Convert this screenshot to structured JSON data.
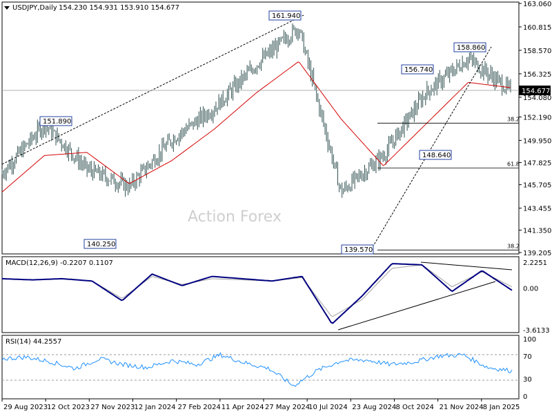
{
  "header": {
    "symbol": "USDJPY,Daily",
    "ohlc": "154.230 154.931 153.910 154.677"
  },
  "watermark": "Action Forex",
  "colors": {
    "price": "#2f4f4f",
    "ma": "#d40000",
    "macd": "#000080",
    "signal": "#a0a0a0",
    "rsi": "#1e90ff",
    "current_label_bg": "#000000"
  },
  "chart_data": [
    {
      "type": "line",
      "name": "price-panel",
      "ylim": [
        139.205,
        163.06
      ],
      "ticks": [
        "163.060",
        "160.815",
        "158.570",
        "156.325",
        "154.080",
        "152.190",
        "149.950",
        "147.825",
        "145.705",
        "143.455",
        "141.350",
        "139.205"
      ],
      "current": "154.677",
      "x": [
        "2023-08-29",
        "2023-10-12",
        "2023-11-27",
        "2024-01-12",
        "2024-02-27",
        "2024-04-11",
        "2024-05-27",
        "2024-07-10",
        "2024-08-23",
        "2024-10-08",
        "2024-11-21",
        "2025-01-08",
        "2025-01-16"
      ],
      "series": [
        {
          "values": [
            146.8,
            151.5,
            147.2,
            145.5,
            150.0,
            153.0,
            157.2,
            160.8,
            145.0,
            148.5,
            154.5,
            157.8,
            154.7
          ]
        },
        {
          "values": [
            145.0,
            148.5,
            148.8,
            145.8,
            148.0,
            151.0,
            154.5,
            157.5,
            152.0,
            147.5,
            151.5,
            155.5,
            155.0
          ]
        }
      ],
      "labels": [
        "161.940",
        "151.890",
        "140.250",
        "139.570",
        "156.740",
        "158.860",
        "148.640"
      ],
      "levels": [
        {
          "label": "38.2",
          "value": 151.6
        },
        {
          "label": "61.8",
          "value": 147.3
        },
        {
          "label": "38.2",
          "value": 139.45
        }
      ],
      "dates": [
        "29 Aug 2023",
        "12 Oct 2023",
        "27 Nov 2023",
        "12 Jan 2024",
        "27 Feb 2024",
        "11 Apr 2024",
        "27 May 2024",
        "10 Jul 2024",
        "23 Aug 2024",
        "8 Oct 2024",
        "21 Nov 2024",
        "8 Jan 2025"
      ]
    },
    {
      "type": "line",
      "name": "macd-panel",
      "title": "MACD(12,26,9) -0.2207 0.1107",
      "ylim": [
        -3.6133,
        2.2251
      ],
      "ticks": [
        "2.2251",
        "0.00",
        "-3.6133"
      ],
      "series": [
        {
          "values": [
            0.8,
            0.7,
            0.8,
            0.6,
            -1.1,
            1.2,
            0.2,
            1.0,
            0.8,
            0.6,
            1.0,
            -3.1,
            -0.7,
            2.1,
            2.0,
            -0.3,
            1.5,
            -0.2
          ]
        },
        {
          "values": [
            0.8,
            0.7,
            0.8,
            0.6,
            -0.9,
            1.0,
            0.3,
            0.8,
            0.7,
            0.6,
            0.9,
            -2.5,
            -1.0,
            1.7,
            2.0,
            0.1,
            1.4,
            0.1
          ]
        }
      ]
    },
    {
      "type": "line",
      "name": "rsi-panel",
      "title": "RSI(14) 44.2557",
      "ylim": [
        0,
        100
      ],
      "ticks": [
        "100",
        "70",
        "30",
        "0"
      ],
      "series": [
        {
          "values": [
            65,
            68,
            60,
            48,
            65,
            55,
            50,
            62,
            55,
            72,
            58,
            48,
            18,
            45,
            62,
            63,
            55,
            60,
            70,
            72,
            50,
            44
          ]
        }
      ]
    }
  ]
}
